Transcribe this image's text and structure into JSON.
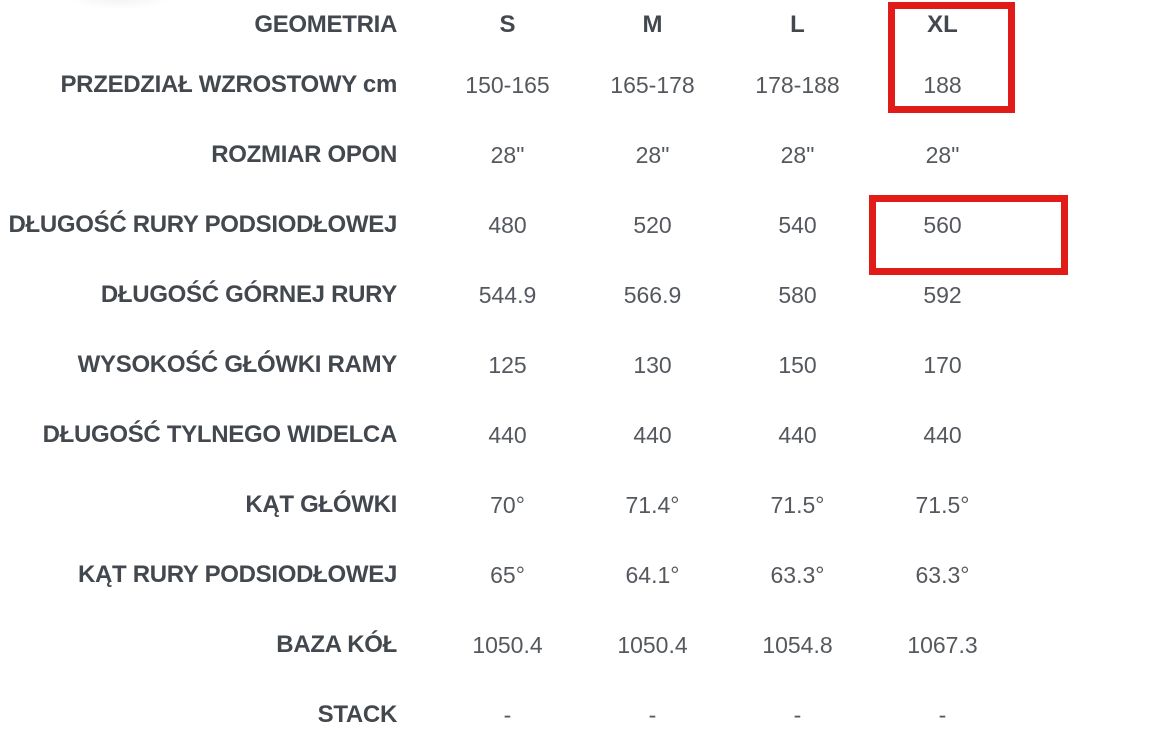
{
  "table": {
    "header": {
      "label": "GEOMETRIA",
      "columns": [
        "S",
        "M",
        "L",
        "XL"
      ]
    },
    "rows": [
      {
        "label": "PRZEDZIAŁ WZROSTOWY cm",
        "values": [
          "150-165",
          "165-178",
          "178-188",
          "188"
        ]
      },
      {
        "label": "ROZMIAR OPON",
        "values": [
          "28\"",
          "28\"",
          "28\"",
          "28\""
        ]
      },
      {
        "label": "DŁUGOŚĆ RURY PODSIODŁOWEJ",
        "values": [
          "480",
          "520",
          "540",
          "560"
        ]
      },
      {
        "label": "DŁUGOŚĆ GÓRNEJ RURY",
        "values": [
          "544.9",
          "566.9",
          "580",
          "592"
        ]
      },
      {
        "label": "WYSOKOŚĆ GŁÓWKI RAMY",
        "values": [
          "125",
          "130",
          "150",
          "170"
        ]
      },
      {
        "label": "DŁUGOŚĆ TYLNEGO WIDELCA",
        "values": [
          "440",
          "440",
          "440",
          "440"
        ]
      },
      {
        "label": "KĄT GŁÓWKI",
        "values": [
          "70°",
          "71.4°",
          "71.5°",
          "71.5°"
        ]
      },
      {
        "label": "KĄT RURY PODSIODŁOWEJ",
        "values": [
          "65°",
          "64.1°",
          "63.3°",
          "63.3°"
        ]
      },
      {
        "label": "BAZA KÓŁ",
        "values": [
          "1050.4",
          "1050.4",
          "1054.8",
          "1067.3"
        ]
      },
      {
        "label": "STACK",
        "values": [
          "-",
          "-",
          "-",
          "-"
        ]
      }
    ]
  },
  "highlights": {
    "color": "#e01b18",
    "boxes": [
      {
        "name": "xl-column-highlight",
        "around": "XL / 188"
      },
      {
        "name": "seat-tube-xl-highlight",
        "around": "560"
      }
    ]
  },
  "colors": {
    "label_text": "#43484e",
    "value_text": "#55595e",
    "highlight_red": "#e01b18",
    "background": "#ffffff"
  }
}
